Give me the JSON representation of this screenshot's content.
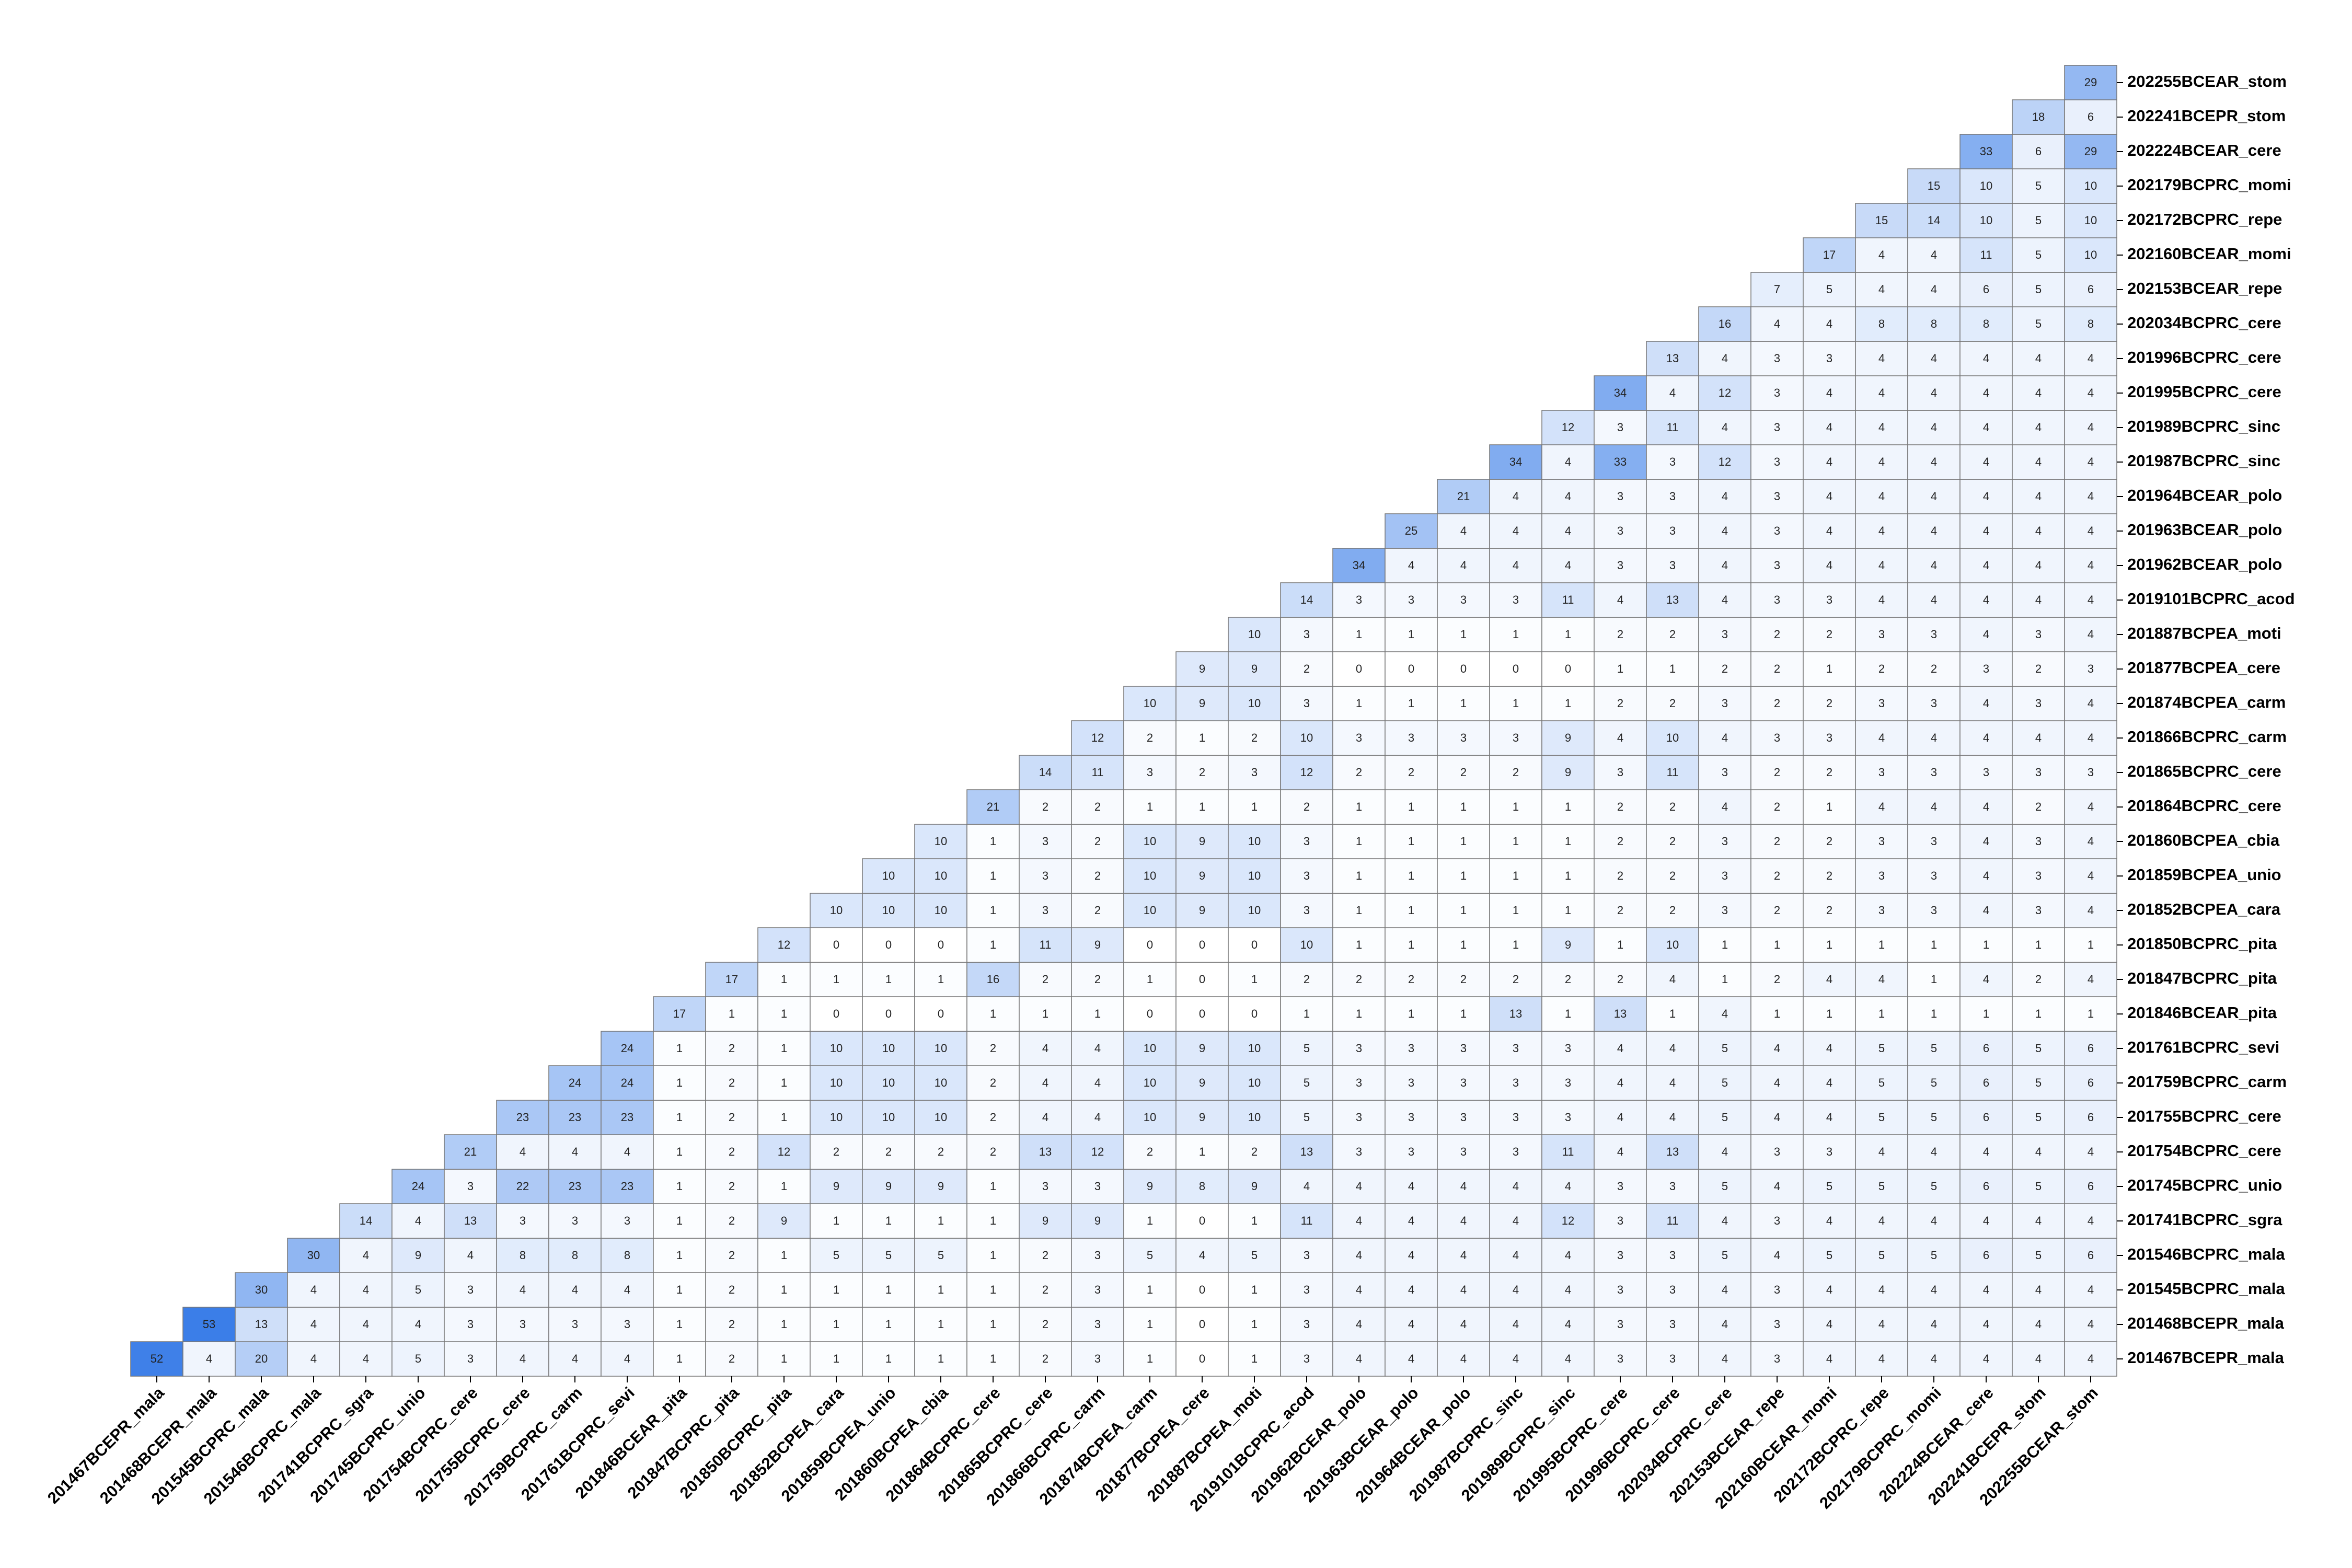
{
  "chart_data": {
    "type": "heatmap",
    "labels": [
      "201467BCEPR_mala",
      "201468BCEPR_mala",
      "201545BCPRC_mala",
      "201546BCPRC_mala",
      "201741BCPRC_sgra",
      "201745BCPRC_unio",
      "201754BCPRC_cere",
      "201755BCPRC_cere",
      "201759BCPRC_carm",
      "201761BCPRC_sevi",
      "201846BCEAR_pita",
      "201847BCPRC_pita",
      "201850BCPRC_pita",
      "201852BCPEA_cara",
      "201859BCPEA_unio",
      "201860BCPEA_cbia",
      "201864BCPRC_cere",
      "201865BCPRC_cere",
      "201866BCPRC_carm",
      "201874BCPEA_carm",
      "201877BCPEA_cere",
      "201887BCPEA_moti",
      "2019101BCPRC_acod",
      "201962BCEAR_polo",
      "201963BCEAR_polo",
      "201964BCEAR_polo",
      "201987BCPRC_sinc",
      "201989BCPRC_sinc",
      "201995BCPRC_cere",
      "201996BCPRC_cere",
      "202034BCPRC_cere",
      "202153BCEAR_repe",
      "202160BCEAR_momi",
      "202172BCPRC_repe",
      "202179BCPRC_momi",
      "202224BCEAR_cere",
      "202241BCEPR_stom",
      "202255BCEAR_stom"
    ],
    "values": [
      [
        52,
        4,
        20,
        4,
        4,
        5,
        3,
        4,
        4,
        4,
        1,
        2,
        1,
        1,
        1,
        1,
        1,
        2,
        3,
        1,
        0,
        1,
        3,
        4,
        4,
        4,
        4,
        4,
        3,
        3,
        4,
        3,
        4,
        4,
        4,
        4,
        4,
        4
      ],
      [
        53,
        13,
        4,
        4,
        4,
        3,
        3,
        3,
        3,
        1,
        2,
        1,
        1,
        1,
        1,
        1,
        2,
        3,
        1,
        0,
        1,
        3,
        4,
        4,
        4,
        4,
        4,
        3,
        3,
        4,
        3,
        4,
        4,
        4,
        4,
        4,
        4
      ],
      [
        30,
        4,
        4,
        5,
        3,
        4,
        4,
        4,
        1,
        2,
        1,
        1,
        1,
        1,
        1,
        2,
        3,
        1,
        0,
        1,
        3,
        4,
        4,
        4,
        4,
        4,
        3,
        3,
        4,
        3,
        4,
        4,
        4,
        4,
        4,
        4
      ],
      [
        30,
        4,
        9,
        4,
        8,
        8,
        8,
        1,
        2,
        1,
        5,
        5,
        5,
        1,
        2,
        3,
        5,
        4,
        5,
        3,
        4,
        4,
        4,
        4,
        4,
        3,
        3,
        5,
        4,
        5,
        5,
        5,
        6,
        5,
        6
      ],
      [
        14,
        4,
        13,
        3,
        3,
        3,
        1,
        2,
        9,
        1,
        1,
        1,
        1,
        9,
        9,
        1,
        0,
        1,
        11,
        4,
        4,
        4,
        4,
        12,
        3,
        11,
        4,
        3,
        4,
        4,
        4,
        4,
        4,
        4
      ],
      [
        24,
        3,
        22,
        23,
        23,
        1,
        2,
        1,
        9,
        9,
        9,
        1,
        3,
        3,
        9,
        8,
        9,
        4,
        4,
        4,
        4,
        4,
        4,
        3,
        3,
        5,
        4,
        5,
        5,
        5,
        6,
        5,
        6
      ],
      [
        21,
        4,
        4,
        4,
        1,
        2,
        12,
        2,
        2,
        2,
        2,
        13,
        12,
        2,
        1,
        2,
        13,
        3,
        3,
        3,
        3,
        11,
        4,
        13,
        4,
        3,
        3,
        4,
        4,
        4,
        4,
        4
      ],
      [
        23,
        23,
        23,
        1,
        2,
        1,
        10,
        10,
        10,
        2,
        4,
        4,
        10,
        9,
        10,
        5,
        3,
        3,
        3,
        3,
        3,
        4,
        4,
        5,
        4,
        4,
        5,
        5,
        6,
        5,
        6
      ],
      [
        24,
        24,
        1,
        2,
        1,
        10,
        10,
        10,
        2,
        4,
        4,
        10,
        9,
        10,
        5,
        3,
        3,
        3,
        3,
        3,
        4,
        4,
        5,
        4,
        4,
        5,
        5,
        6,
        5,
        6
      ],
      [
        24,
        1,
        2,
        1,
        10,
        10,
        10,
        2,
        4,
        4,
        10,
        9,
        10,
        5,
        3,
        3,
        3,
        3,
        3,
        4,
        4,
        5,
        4,
        4,
        5,
        5,
        6,
        5,
        6
      ],
      [
        17,
        1,
        1,
        0,
        0,
        0,
        1,
        1,
        1,
        0,
        0,
        0,
        1,
        1,
        1,
        1,
        13,
        1,
        13,
        1,
        4,
        1,
        1,
        1,
        1,
        1,
        1,
        1
      ],
      [
        17,
        1,
        1,
        1,
        1,
        16,
        2,
        2,
        1,
        0,
        1,
        2,
        2,
        2,
        2,
        2,
        2,
        2,
        4,
        1,
        2,
        4,
        4,
        1,
        4,
        2,
        4
      ],
      [
        12,
        0,
        0,
        0,
        1,
        11,
        9,
        0,
        0,
        0,
        10,
        1,
        1,
        1,
        1,
        9,
        1,
        10,
        1,
        1,
        1,
        1,
        1,
        1,
        1,
        1
      ],
      [
        10,
        10,
        10,
        1,
        3,
        2,
        10,
        9,
        10,
        3,
        1,
        1,
        1,
        1,
        1,
        2,
        2,
        3,
        2,
        2,
        3,
        3,
        4,
        3,
        4
      ],
      [
        10,
        10,
        1,
        3,
        2,
        10,
        9,
        10,
        3,
        1,
        1,
        1,
        1,
        1,
        2,
        2,
        3,
        2,
        2,
        3,
        3,
        4,
        3,
        4
      ],
      [
        10,
        1,
        3,
        2,
        10,
        9,
        10,
        3,
        1,
        1,
        1,
        1,
        1,
        2,
        2,
        3,
        2,
        2,
        3,
        3,
        4,
        3,
        4
      ],
      [
        21,
        2,
        2,
        1,
        1,
        1,
        2,
        1,
        1,
        1,
        1,
        1,
        2,
        2,
        4,
        2,
        1,
        4,
        4,
        4,
        2,
        4
      ],
      [
        14,
        11,
        3,
        2,
        3,
        12,
        2,
        2,
        2,
        2,
        9,
        3,
        11,
        3,
        2,
        2,
        3,
        3,
        3,
        3,
        3
      ],
      [
        12,
        2,
        1,
        2,
        10,
        3,
        3,
        3,
        3,
        9,
        4,
        10,
        4,
        3,
        3,
        4,
        4,
        4,
        4,
        4
      ],
      [
        10,
        9,
        10,
        3,
        1,
        1,
        1,
        1,
        1,
        2,
        2,
        3,
        2,
        2,
        3,
        3,
        4,
        3,
        4
      ],
      [
        9,
        9,
        2,
        0,
        0,
        0,
        0,
        0,
        1,
        1,
        2,
        2,
        1,
        2,
        2,
        3,
        2,
        3
      ],
      [
        10,
        3,
        1,
        1,
        1,
        1,
        1,
        2,
        2,
        3,
        2,
        2,
        3,
        3,
        4,
        3,
        4
      ],
      [
        14,
        3,
        3,
        3,
        3,
        11,
        4,
        13,
        4,
        3,
        3,
        4,
        4,
        4,
        4,
        4
      ],
      [
        34,
        4,
        4,
        4,
        4,
        3,
        3,
        4,
        3,
        4,
        4,
        4,
        4,
        4,
        4
      ],
      [
        25,
        4,
        4,
        4,
        3,
        3,
        4,
        3,
        4,
        4,
        4,
        4,
        4,
        4
      ],
      [
        21,
        4,
        4,
        3,
        3,
        4,
        3,
        4,
        4,
        4,
        4,
        4,
        4
      ],
      [
        34,
        4,
        33,
        3,
        12,
        3,
        4,
        4,
        4,
        4,
        4,
        4
      ],
      [
        12,
        3,
        11,
        4,
        3,
        4,
        4,
        4,
        4,
        4,
        4
      ],
      [
        34,
        4,
        12,
        3,
        4,
        4,
        4,
        4,
        4,
        4
      ],
      [
        13,
        4,
        3,
        3,
        4,
        4,
        4,
        4,
        4
      ],
      [
        16,
        4,
        4,
        8,
        8,
        8,
        5,
        8
      ],
      [
        7,
        5,
        4,
        4,
        6,
        5,
        6
      ],
      [
        17,
        4,
        4,
        11,
        5,
        10
      ],
      [
        15,
        14,
        10,
        5,
        10
      ],
      [
        15,
        10,
        5,
        10
      ],
      [
        33,
        6,
        29
      ],
      [
        18,
        6
      ],
      [
        29
      ]
    ],
    "cmap": [
      "#ffffff",
      "#3b7ee8"
    ]
  }
}
